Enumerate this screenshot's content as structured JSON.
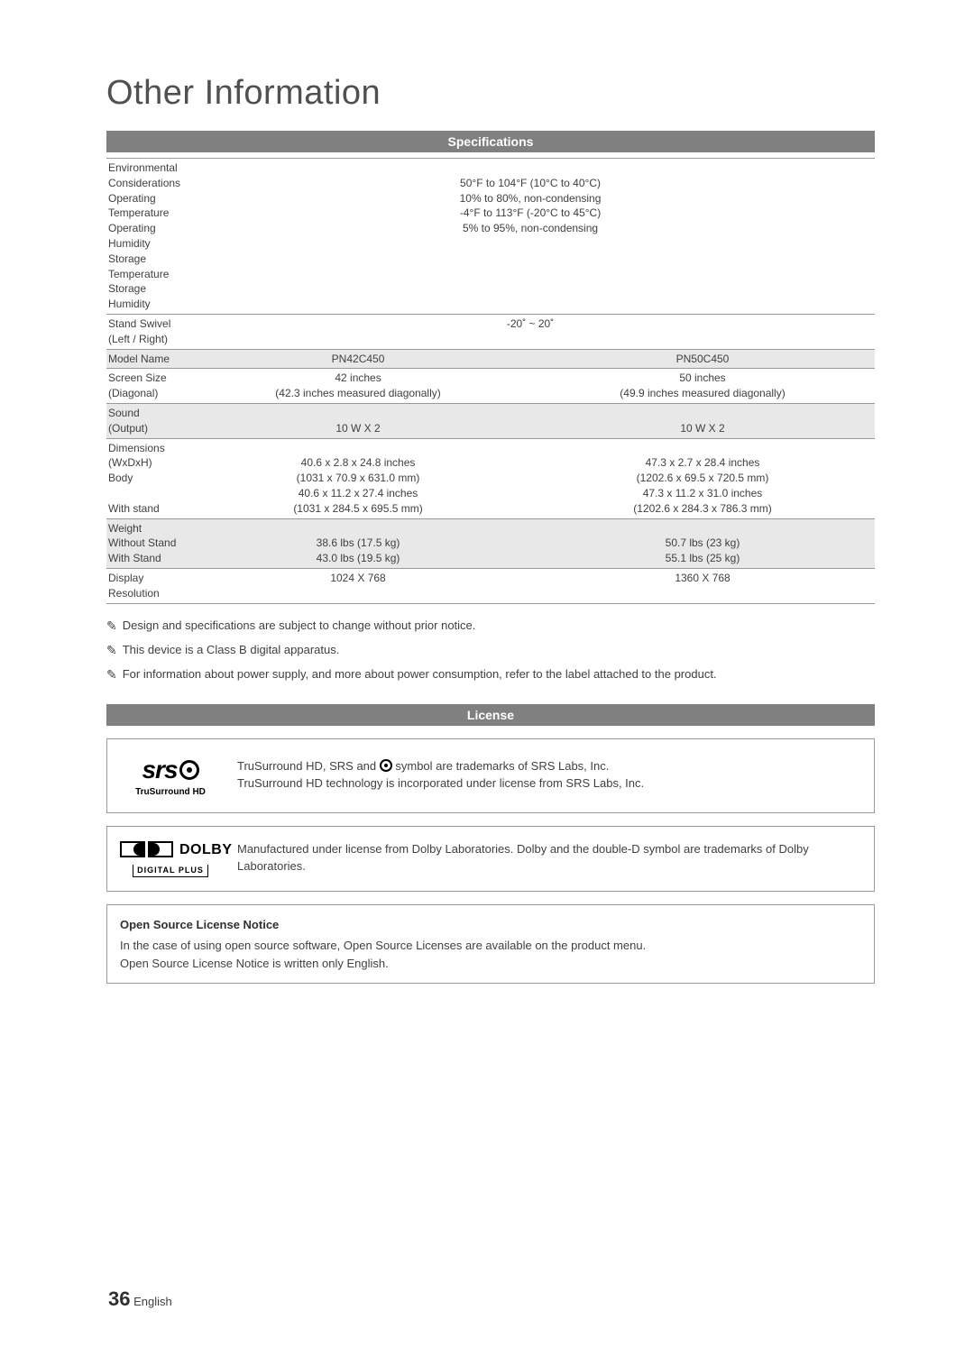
{
  "page": {
    "title": "Other Information",
    "number": "36",
    "language": "English"
  },
  "sections": {
    "specifications": "Specifications",
    "license": "License"
  },
  "spec": {
    "env": {
      "label": "Environmental Considerations",
      "op_temp_label": "Operating Temperature",
      "op_temp_val": "50°F to 104°F (10°C to 40°C)",
      "op_hum_label": "Operating Humidity",
      "op_hum_val": "10% to 80%, non-condensing",
      "st_temp_label": "Storage Temperature",
      "st_temp_val": "-4°F to 113°F (-20°C to 45°C)",
      "st_hum_label": "Storage Humidity",
      "st_hum_val": "5% to 95%, non-condensing"
    },
    "swivel": {
      "label": "Stand Swivel (Left / Right)",
      "val": "-20˚ ~ 20˚"
    },
    "model": {
      "label": "Model Name",
      "a": "PN42C450",
      "b": "PN50C450"
    },
    "screen": {
      "label": "Screen Size",
      "sublabel": "(Diagonal)",
      "a1": "42 inches",
      "a2": "(42.3 inches measured diagonally)",
      "b1": "50 inches",
      "b2": "(49.9 inches measured diagonally)"
    },
    "sound": {
      "label": "Sound",
      "sublabel": "(Output)",
      "a": "10 W X 2",
      "b": "10 W X 2"
    },
    "dim": {
      "label": "Dimensions (WxDxH)",
      "body_label": "Body",
      "stand_label": "With stand",
      "a_body_in": "40.6 x 2.8 x 24.8 inches",
      "a_body_mm": "(1031 x 70.9 x 631.0 mm)",
      "a_stand_in": "40.6 x 11.2 x 27.4 inches",
      "a_stand_mm": "(1031 x 284.5 x 695.5 mm)",
      "b_body_in": "47.3 x 2.7 x 28.4 inches",
      "b_body_mm": "(1202.6 x 69.5 x 720.5 mm)",
      "b_stand_in": "47.3 x 11.2 x 31.0 inches",
      "b_stand_mm": "(1202.6 x 284.3 x 786.3 mm)"
    },
    "weight": {
      "label": "Weight",
      "wo_label": "Without Stand",
      "w_label": "With Stand",
      "a_wo": "38.6 lbs (17.5 kg)",
      "a_w": "43.0 lbs (19.5 kg)",
      "b_wo": "50.7 lbs (23 kg)",
      "b_w": "55.1 lbs (25 kg)"
    },
    "res": {
      "label": "Display Resolution",
      "a": "1024 X 768",
      "b": "1360 X 768"
    }
  },
  "notes": {
    "n1": "Design and specifications are subject to change without prior notice.",
    "n2": "This device is a Class B digital apparatus.",
    "n3": "For information about power supply, and more about power consumption, refer to the label attached to the product."
  },
  "license": {
    "srs": {
      "logo_main": "srs",
      "logo_sub": "TruSurround HD",
      "line1_pre": "TruSurround HD, SRS and ",
      "line1_post": " symbol are trademarks of SRS Labs, Inc.",
      "line2": "TruSurround HD technology is incorporated under license from SRS Labs, Inc."
    },
    "dolby": {
      "logo_name": "DOLBY",
      "logo_sub": "DIGITAL PLUS",
      "text": "Manufactured under license from Dolby Laboratories. Dolby and the double-D symbol are trademarks of Dolby Laboratories."
    },
    "open": {
      "title": "Open Source License Notice",
      "line1": "In the case of using open source software, Open Source Licenses are available on the product menu.",
      "line2": "Open Source License Notice is written only English."
    }
  },
  "colors": {
    "header_bg": "#808080",
    "header_fg": "#ffffff",
    "shaded_row": "#e8e8e8",
    "border": "#9a9a9a",
    "text": "#404040",
    "title": "#505050"
  }
}
